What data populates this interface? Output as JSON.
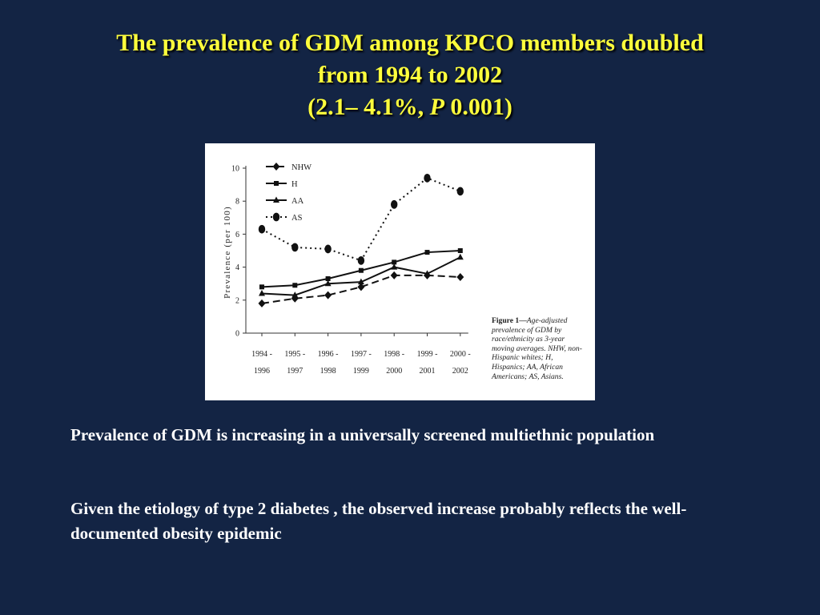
{
  "slide": {
    "title_line1": "The prevalence of GDM among KPCO members doubled",
    "title_line2": "from 1994 to 2002",
    "title_line3_prefix": "(2.1– 4.1%, ",
    "title_line3_p": "P",
    "title_line3_suffix": "  0.001)",
    "bullet1": "Prevalence of GDM is increasing in a universally screened multiethnic population",
    "bullet2": "Given the etiology of type 2 diabetes , the observed increase probably reflects the well-documented obesity epidemic",
    "background_color": "#132444",
    "title_color": "#ffff3c"
  },
  "chart_data": {
    "type": "line",
    "ylabel": "Prevalence (per 100)",
    "xlabel": "",
    "ylim": [
      0,
      10
    ],
    "yticks": [
      0,
      2,
      4,
      6,
      8,
      10
    ],
    "categories": [
      [
        "1994 -",
        "1996"
      ],
      [
        "1995 -",
        "1997"
      ],
      [
        "1996 -",
        "1998"
      ],
      [
        "1997 -",
        "1999"
      ],
      [
        "1998 -",
        "2000"
      ],
      [
        "1999 -",
        "2001"
      ],
      [
        "2000 -",
        "2002"
      ]
    ],
    "series": [
      {
        "name": "NHW",
        "values": [
          1.8,
          2.1,
          2.3,
          2.8,
          3.5,
          3.5,
          3.4
        ],
        "marker": "diamond",
        "dash": "long-dash"
      },
      {
        "name": "H",
        "values": [
          2.8,
          2.9,
          3.3,
          3.8,
          4.3,
          4.9,
          5.0
        ],
        "marker": "square",
        "dash": "solid"
      },
      {
        "name": "AA",
        "values": [
          2.4,
          2.3,
          3.0,
          3.1,
          4.0,
          3.6,
          4.6
        ],
        "marker": "triangle",
        "dash": "solid"
      },
      {
        "name": "AS",
        "values": [
          6.3,
          5.2,
          5.1,
          4.4,
          7.8,
          9.4,
          8.6
        ],
        "marker": "circle",
        "dash": "dotted"
      }
    ],
    "legend_position": "top-left",
    "caption_lead": "Figure 1—",
    "caption_body": "Age-adjusted prevalence of GDM by race/ethnicity as 3-year moving averages. NHW, non-Hispanic whites; H, Hispanics; AA, African Americans; AS, Asians.",
    "grid": false
  }
}
